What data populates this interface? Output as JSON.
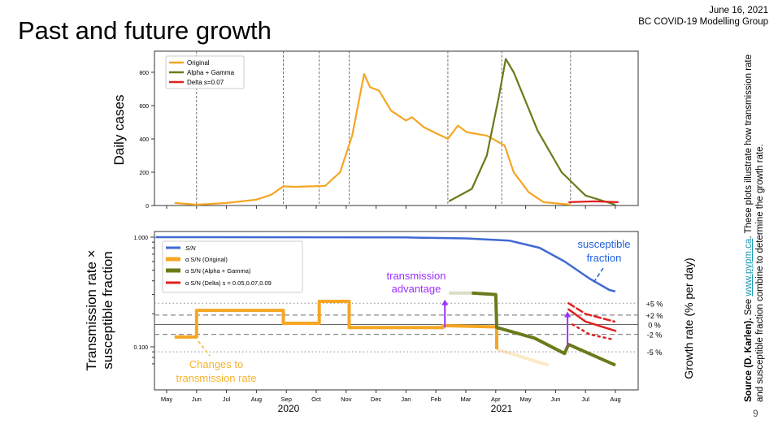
{
  "slide": {
    "title": "Past and future growth",
    "date": "June 16, 2021",
    "group": "BC COVID-19 Modelling Group",
    "page_number": "9",
    "source_bold": "Source (D. Karlen).",
    "source_pre": " See ",
    "source_link": "www.pypm.ca",
    "source_post": ". These plots illustrate how transmission rate and susceptible fraction combine to determine the growth rate."
  },
  "colors": {
    "original": "#f5a623",
    "alpha_gamma": "#6b7a1a",
    "delta": "#e0201e",
    "sn": "#4169d4",
    "annot_purple": "#9b30ff",
    "annot_blue": "#1f5fe0",
    "annot_orange": "#f5b32a"
  },
  "chart_data": [
    {
      "type": "line",
      "ylabel": "Daily cases",
      "ylim": [
        0,
        900
      ],
      "yticks": [
        "0",
        "200",
        "400",
        "600",
        "800"
      ],
      "legend_position": "top-left",
      "vlines": [
        "2020-05-31",
        "2020-08-28",
        "2020-10-04",
        "2020-11-04",
        "2021-02-13",
        "2021-04-07",
        "2021-06-16"
      ],
      "series": [
        {
          "name": "Original",
          "color": "#f5a623",
          "points": [
            [
              "2020-05-09",
              15
            ],
            [
              "2020-06-01",
              5
            ],
            [
              "2020-07-01",
              15
            ],
            [
              "2020-08-01",
              35
            ],
            [
              "2020-08-16",
              65
            ],
            [
              "2020-08-28",
              115
            ],
            [
              "2020-09-10",
              112
            ],
            [
              "2020-10-10",
              118
            ],
            [
              "2020-10-25",
              200
            ],
            [
              "2020-11-07",
              420
            ],
            [
              "2020-11-19",
              790
            ],
            [
              "2020-11-25",
              710
            ],
            [
              "2020-12-04",
              690
            ],
            [
              "2020-12-16",
              570
            ],
            [
              "2021-01-01",
              510
            ],
            [
              "2021-01-07",
              530
            ],
            [
              "2021-01-19",
              470
            ],
            [
              "2021-02-13",
              400
            ],
            [
              "2021-02-23",
              480
            ],
            [
              "2021-03-02",
              440
            ],
            [
              "2021-03-22",
              420
            ],
            [
              "2021-04-10",
              360
            ],
            [
              "2021-04-19",
              200
            ],
            [
              "2021-05-04",
              80
            ],
            [
              "2021-05-19",
              20
            ],
            [
              "2021-06-16",
              5
            ]
          ]
        },
        {
          "name": "Alpha + Gamma",
          "color": "#6b7a1a",
          "points": [
            [
              "2021-02-14",
              25
            ],
            [
              "2021-03-07",
              100
            ],
            [
              "2021-03-22",
              300
            ],
            [
              "2021-04-04",
              650
            ],
            [
              "2021-04-11",
              880
            ],
            [
              "2021-04-19",
              800
            ],
            [
              "2021-05-13",
              450
            ],
            [
              "2021-06-07",
              200
            ],
            [
              "2021-07-01",
              60
            ],
            [
              "2021-08-01",
              5
            ]
          ]
        },
        {
          "name": "Delta s=0.07",
          "color": "#e0201e",
          "points": [
            [
              "2021-06-14",
              20
            ],
            [
              "2021-07-10",
              25
            ],
            [
              "2021-08-04",
              20
            ]
          ]
        }
      ]
    },
    {
      "type": "line",
      "ylabel": "Transmission rate × susceptible fraction",
      "ylabel_lines": [
        "Transmission rate ×",
        "susceptible fraction"
      ],
      "y2label": "Growth rate (% per day)",
      "yscale": "log",
      "ylim": [
        0.06,
        1.05
      ],
      "yticks": [
        {
          "value": 1.0,
          "label": "1.000"
        },
        {
          "value": 0.1,
          "label": "0.100"
        }
      ],
      "legend_position": "top-left",
      "xticks": [
        "May",
        "Jun",
        "Jul",
        "Aug",
        "Sep",
        "Oct",
        "Nov",
        "Dec",
        "Jan",
        "Feb",
        "Mar",
        "Apr",
        "May",
        "Jun",
        "Jul",
        "Aug"
      ],
      "years": [
        "2020",
        "2021"
      ],
      "growth_lines": [
        {
          "label": "+5 %",
          "value": 0.25,
          "style": "dotted"
        },
        {
          "label": "+2 %",
          "value": 0.195,
          "style": "dashed"
        },
        {
          "label": "0 %",
          "value": 0.16,
          "style": "solid"
        },
        {
          "label": "-2 %",
          "value": 0.13,
          "style": "dashed"
        },
        {
          "label": "-5 %",
          "value": 0.09,
          "style": "dotted"
        }
      ],
      "series": [
        {
          "name": "S/N",
          "color": "#4169d4",
          "points": [
            [
              "2020-04-20",
              1
            ],
            [
              "2021-01-01",
              0.995
            ],
            [
              "2021-03-01",
              0.975
            ],
            [
              "2021-04-15",
              0.93
            ],
            [
              "2021-05-15",
              0.8
            ],
            [
              "2021-06-10",
              0.6
            ],
            [
              "2021-07-05",
              0.42
            ],
            [
              "2021-07-25",
              0.33
            ],
            [
              "2021-08-01",
              0.32
            ]
          ]
        },
        {
          "name": "α S/N (Original)",
          "color": "#f5a623",
          "points": [
            [
              "2020-05-09",
              0.123
            ],
            [
              "2020-05-31",
              0.123
            ],
            [
              "2020-05-31",
              0.215
            ],
            [
              "2020-08-28",
              0.215
            ],
            [
              "2020-08-28",
              0.164
            ],
            [
              "2020-10-04",
              0.164
            ],
            [
              "2020-10-04",
              0.26
            ],
            [
              "2020-11-04",
              0.26
            ],
            [
              "2020-11-04",
              0.15
            ],
            [
              "2021-02-08",
              0.15
            ],
            [
              "2021-02-08",
              0.156
            ],
            [
              "2021-04-02",
              0.152
            ],
            [
              "2021-04-02",
              0.095
            ]
          ],
          "projection": [
            [
              "2021-04-02",
              0.095
            ],
            [
              "2021-05-24",
              0.068
            ]
          ]
        },
        {
          "name": "α S/N (Alpha + Gamma)",
          "color": "#6b7a1a",
          "points": [
            [
              "2021-03-07",
              0.31
            ],
            [
              "2021-04-01",
              0.3
            ],
            [
              "2021-04-02",
              0.15
            ],
            [
              "2021-05-10",
              0.12
            ],
            [
              "2021-06-10",
              0.087
            ],
            [
              "2021-06-14",
              0.105
            ],
            [
              "2021-08-01",
              0.068
            ]
          ],
          "projection": [
            [
              "2021-02-14",
              0.31
            ],
            [
              "2021-03-07",
              0.31
            ]
          ]
        },
        {
          "name": "α S/N (Delta) s = 0.05,0.07,0.09",
          "color": "#e0201e",
          "lines": [
            {
              "style": "dashed",
              "points": [
                [
                  "2021-06-14",
                  0.25
                ],
                [
                  "2021-07-01",
                  0.2
                ],
                [
                  "2021-07-30",
                  0.17
                ]
              ]
            },
            {
              "style": "solid",
              "points": [
                [
                  "2021-06-14",
                  0.22
                ],
                [
                  "2021-07-01",
                  0.17
                ],
                [
                  "2021-08-01",
                  0.14
                ]
              ]
            },
            {
              "style": "dotted",
              "points": [
                [
                  "2021-06-18",
                  0.16
                ],
                [
                  "2021-07-05",
                  0.13
                ],
                [
                  "2021-07-30",
                  0.116
                ]
              ]
            }
          ]
        }
      ],
      "annotations": {
        "transmission_advantage": [
          "transmission",
          "advantage"
        ],
        "susceptible_fraction": [
          "susceptible",
          "fraction"
        ],
        "changes": [
          "Changes to",
          "transmission rate"
        ]
      },
      "arrows": [
        {
          "date": "2021-02-10",
          "from": 0.15,
          "to": 0.27
        },
        {
          "date": "2021-06-13",
          "from": 0.1,
          "to": 0.21
        }
      ]
    }
  ]
}
